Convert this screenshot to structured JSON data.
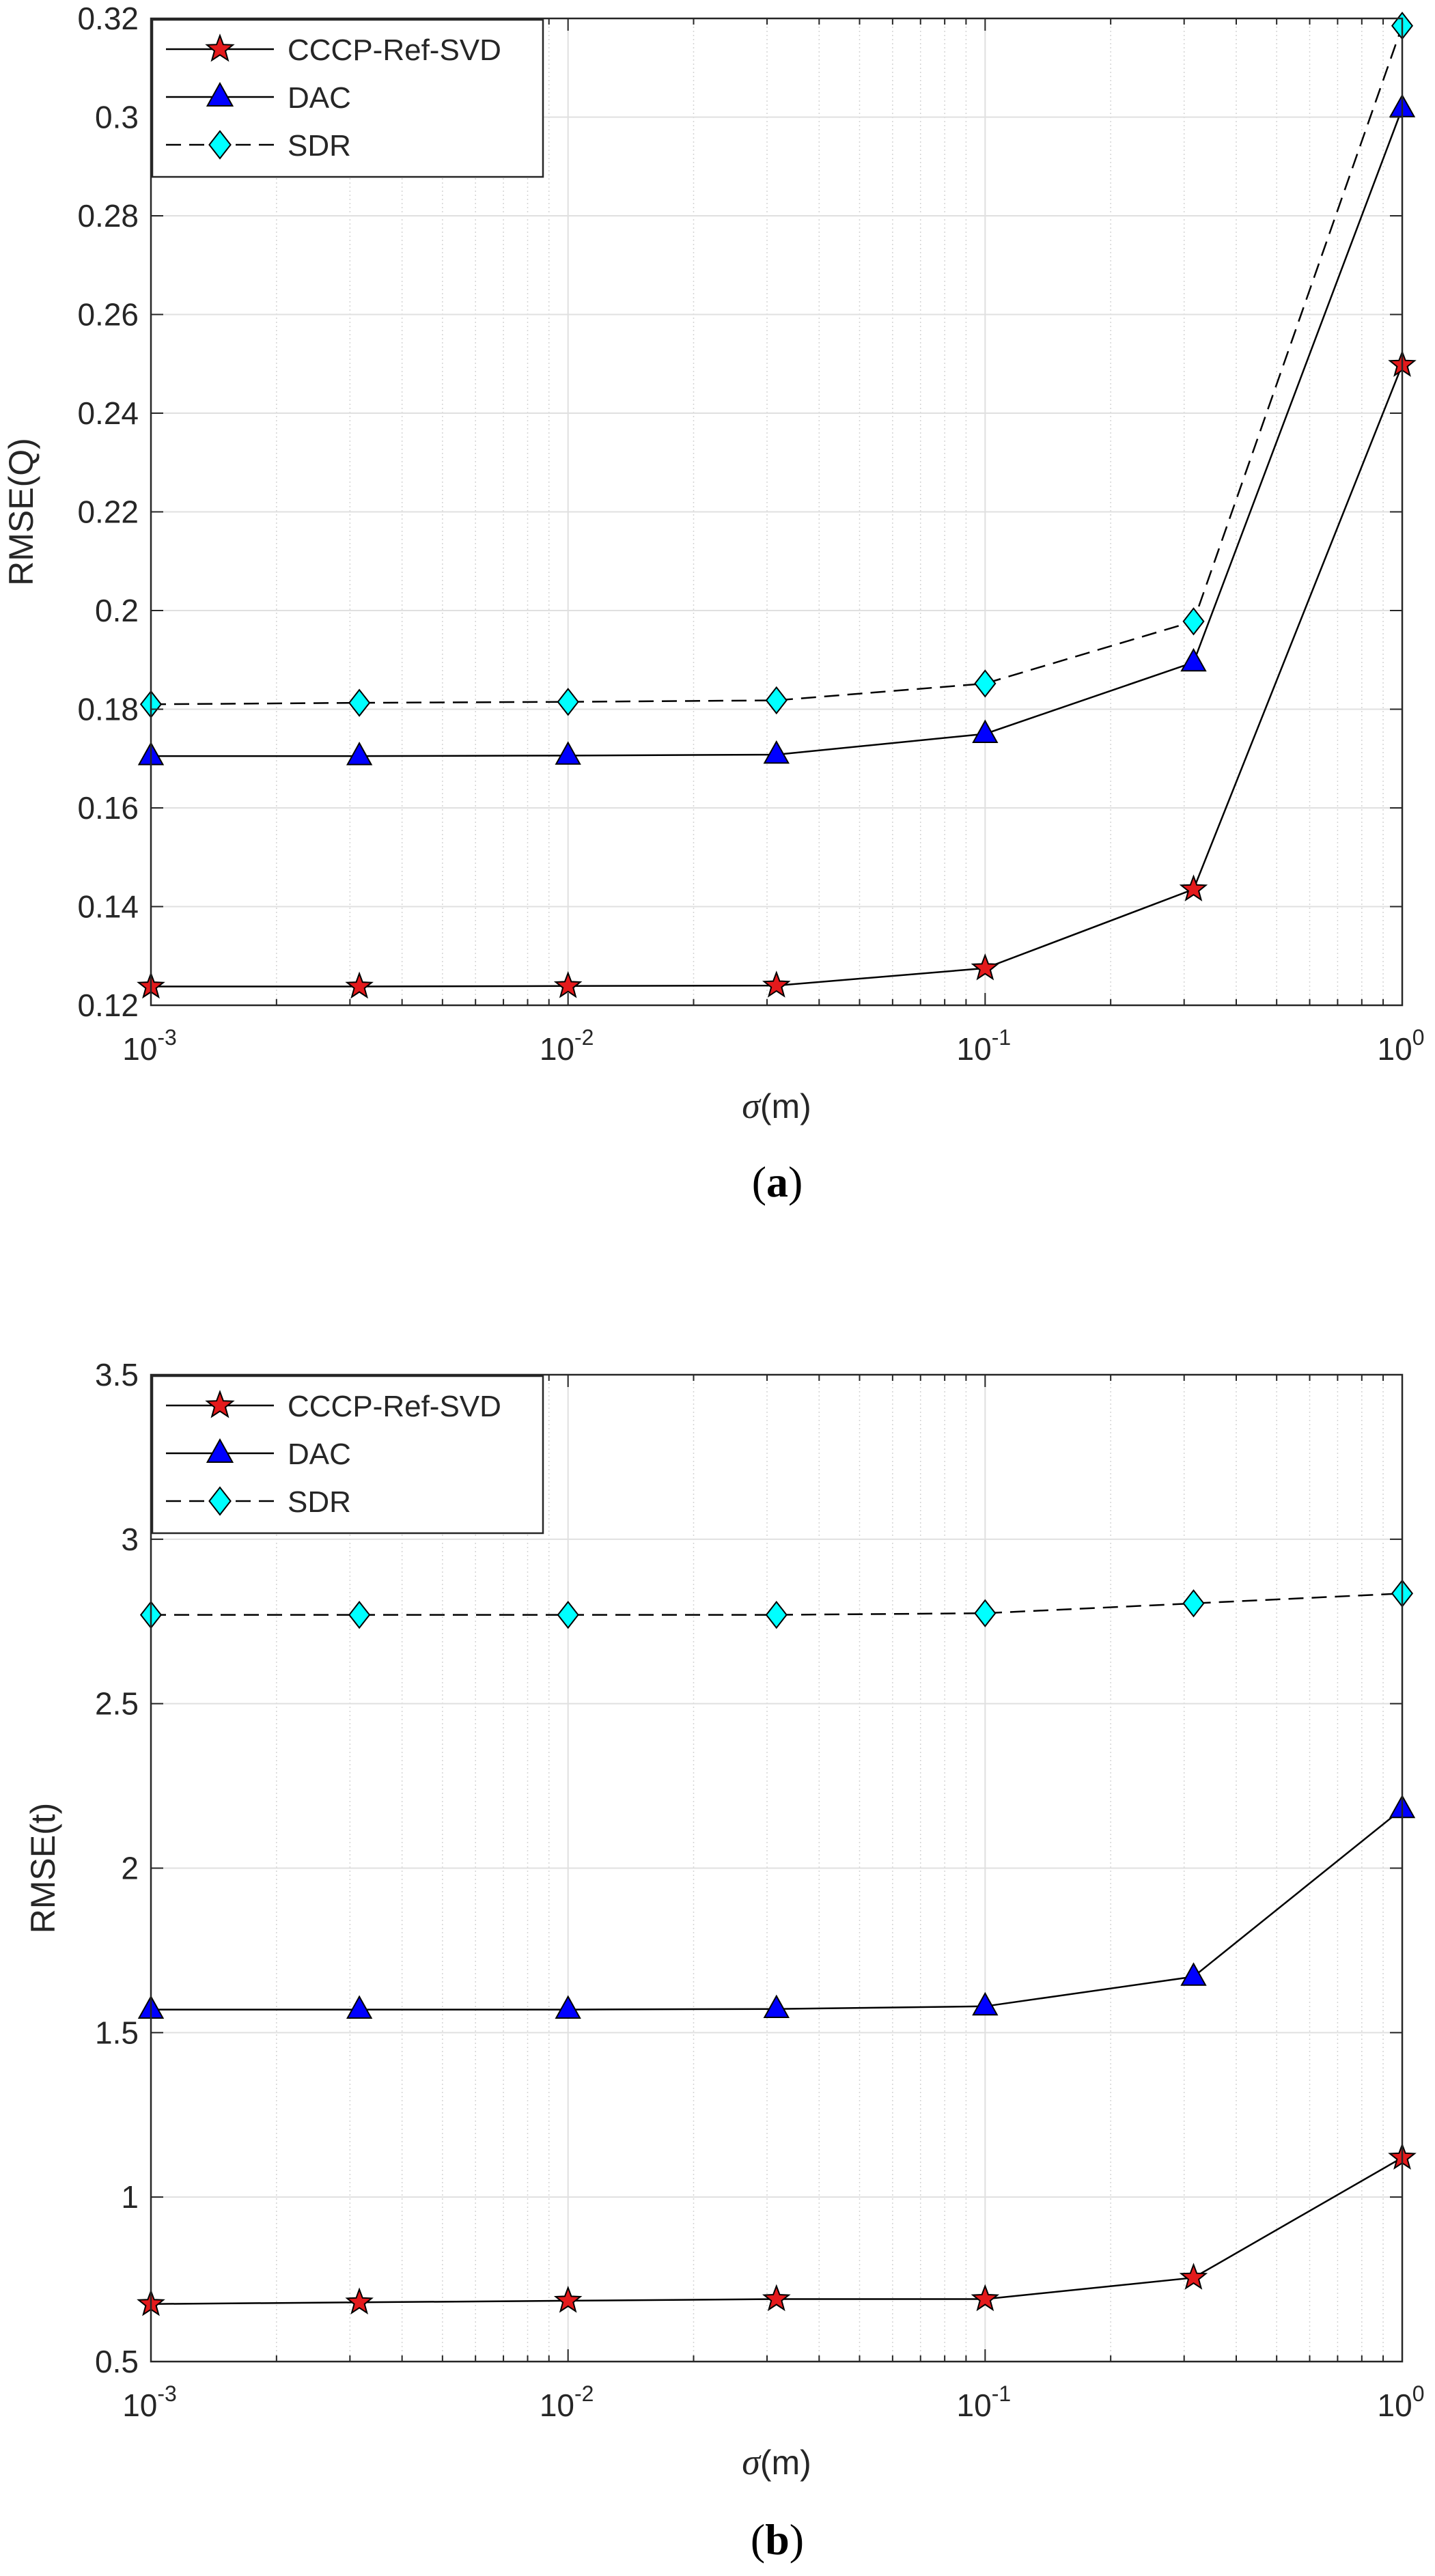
{
  "chart_data": [
    {
      "type": "line",
      "panel_label": "a",
      "xlabel_symbol": "σ",
      "xlabel_unit": "(m)",
      "ylabel": "RMSE(Q)",
      "xscale": "log",
      "xlim": [
        0.001,
        1
      ],
      "ylim": [
        0.12,
        0.32
      ],
      "x_ticks": [
        0.001,
        0.01,
        0.1,
        1
      ],
      "x_tick_labels": [
        {
          "base": "10",
          "exp": "-3"
        },
        {
          "base": "10",
          "exp": "-2"
        },
        {
          "base": "10",
          "exp": "-1"
        },
        {
          "base": "10",
          "exp": "0"
        }
      ],
      "y_ticks": [
        0.12,
        0.14,
        0.16,
        0.18,
        0.2,
        0.22,
        0.24,
        0.26,
        0.28,
        0.3,
        0.32
      ],
      "y_tick_labels": [
        "0.12",
        "0.14",
        "0.16",
        "0.18",
        "0.2",
        "0.22",
        "0.24",
        "0.26",
        "0.28",
        "0.3",
        "0.32"
      ],
      "grid": true,
      "legend_position": "top-left",
      "x": [
        0.001,
        0.00316,
        0.01,
        0.0316,
        0.1,
        0.316,
        1
      ],
      "series": [
        {
          "name": "CCCP-Ref-SVD",
          "marker": "star",
          "line": "solid",
          "values": [
            0.1238,
            0.1238,
            0.1239,
            0.124,
            0.1275,
            0.1435,
            0.2498
          ]
        },
        {
          "name": "DAC",
          "marker": "triangle",
          "line": "solid",
          "values": [
            0.1705,
            0.1705,
            0.1706,
            0.1708,
            0.175,
            0.1895,
            0.3018
          ]
        },
        {
          "name": "SDR",
          "marker": "diamond",
          "line": "dashed",
          "values": [
            0.181,
            0.1813,
            0.1815,
            0.1818,
            0.1852,
            0.1978,
            0.3185
          ]
        }
      ]
    },
    {
      "type": "line",
      "panel_label": "b",
      "xlabel_symbol": "σ",
      "xlabel_unit": "(m)",
      "ylabel": "RMSE(t)",
      "xscale": "log",
      "xlim": [
        0.001,
        1
      ],
      "ylim": [
        0.5,
        3.5
      ],
      "x_ticks": [
        0.001,
        0.01,
        0.1,
        1
      ],
      "x_tick_labels": [
        {
          "base": "10",
          "exp": "-3"
        },
        {
          "base": "10",
          "exp": "-2"
        },
        {
          "base": "10",
          "exp": "-1"
        },
        {
          "base": "10",
          "exp": "0"
        }
      ],
      "y_ticks": [
        0.5,
        1,
        1.5,
        2,
        2.5,
        3,
        3.5
      ],
      "y_tick_labels": [
        "0.5",
        "1",
        "1.5",
        "2",
        "2.5",
        "3",
        "3.5"
      ],
      "grid": true,
      "legend_position": "top-left",
      "x": [
        0.001,
        0.00316,
        0.01,
        0.0316,
        0.1,
        0.316,
        1
      ],
      "series": [
        {
          "name": "CCCP-Ref-SVD",
          "marker": "star",
          "line": "solid",
          "values": [
            0.675,
            0.68,
            0.685,
            0.69,
            0.69,
            0.755,
            1.12
          ]
        },
        {
          "name": "DAC",
          "marker": "triangle",
          "line": "solid",
          "values": [
            1.57,
            1.57,
            1.57,
            1.572,
            1.58,
            1.67,
            2.18
          ]
        },
        {
          "name": "SDR",
          "marker": "diamond",
          "line": "dashed",
          "values": [
            2.77,
            2.77,
            2.77,
            2.77,
            2.775,
            2.805,
            2.835
          ]
        }
      ]
    }
  ],
  "colors": {
    "star_fill": "#e41a1c",
    "triangle_fill": "#0000ff",
    "diamond_fill": "#00ffff",
    "line": "#000000",
    "grid_major": "#e0e0e0",
    "grid_minor": "#d4d4d4",
    "axis": "#262626"
  }
}
